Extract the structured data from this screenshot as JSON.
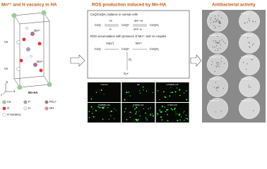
{
  "structure": {
    "title": "Mn³⁺ and H vacancy in HA",
    "mn_labels": [
      "Mn³⁺",
      "Mn³⁺"
    ],
    "vacancy_labels": [
      "Vʜ",
      "Vʜ"
    ],
    "axes": [
      "a",
      "b",
      "c"
    ],
    "caption": "Mn-HA",
    "legend": [
      "Ca",
      "P",
      "PO₄³⁻",
      "O",
      "H",
      "OH⁻",
      "H vacancy"
    ]
  },
  "ros": {
    "title": "ROS production induced by Mn-HA",
    "normal": "CoQ/CoQH₂ balance in normal cells",
    "species": [
      "CoQ",
      "CoQ•⁻",
      "CoQH₂"
    ],
    "forward": [
      "+e",
      "2H⁺+e"
    ],
    "reverse": [
      "-e",
      "-2H⁺-e"
    ],
    "accumulation": "ROS accumulation with presence of Mn³⁺ and Vʜ couples",
    "species2": [
      "CoQ",
      "CoQ•⁻",
      "CoQH₂"
    ],
    "donor": "Vʜ(e')",
    "acceptor": "Mn³⁺",
    "oxygen": "O₂",
    "superoxide": "O₂•⁻",
    "images": [
      "Control",
      "HA",
      "0.002Mn-HA",
      "0.005Mn-HA",
      "0.02Mn-HA",
      "0.1Mn-HA"
    ]
  },
  "antibacterial": {
    "title": "Antibacterial activity",
    "plates": [
      "Pure HA",
      "Pure HA",
      "0.002Mn-HA",
      "0.002Mn-HA",
      "0.005Mn-HA",
      "0.005Mn-HA",
      "0.02Mn-HA",
      "0.02Mn-HA",
      "0.1Mn-HA",
      "0.1Mn-HA"
    ]
  }
}
